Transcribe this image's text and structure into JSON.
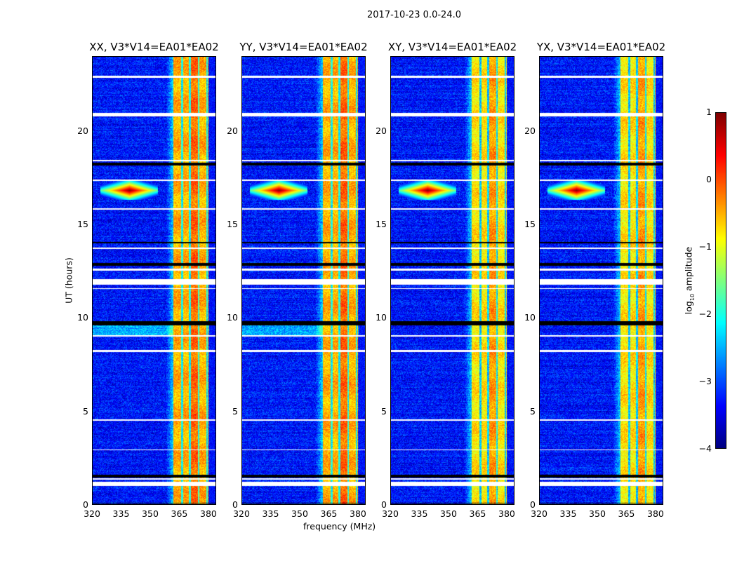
{
  "chart_data": {
    "type": "heatmap",
    "suptitle": "2017-10-23 0.0-24.0",
    "xlabel": "frequency (MHz)",
    "ylabel": "UT (hours)",
    "xlim": [
      320,
      384
    ],
    "ylim": [
      0,
      24
    ],
    "xticks": [
      "320",
      "335",
      "350",
      "365",
      "380"
    ],
    "xtick_values": [
      320,
      335,
      350,
      365,
      380
    ],
    "yticks": [
      "0",
      "5",
      "10",
      "15",
      "20"
    ],
    "ytick_values": [
      0,
      5,
      10,
      15,
      20
    ],
    "panels": [
      {
        "title": "XX, V3*V14=EA01*EA02"
      },
      {
        "title": "YY, V3*V14=EA01*EA02"
      },
      {
        "title": "XY, V3*V14=EA01*EA02"
      },
      {
        "title": "YX, V3*V14=EA01*EA02"
      }
    ],
    "colorbar": {
      "label": "log10 amplitude",
      "label_main": "log",
      "label_sub": "10",
      "label_rest": " amplitude",
      "range": [
        -4,
        1
      ],
      "ticks": [
        "1",
        "0",
        "−1",
        "−2",
        "−3",
        "−4"
      ],
      "tick_values": [
        1,
        0,
        -1,
        -2,
        -3,
        -4
      ],
      "colormap": "jet"
    },
    "background_level": -3.3,
    "bright_band_MHz": [
      362,
      380
    ],
    "bright_band_level": -0.5,
    "rfi_spike": {
      "freq_MHz": 339,
      "time_h": 16.85,
      "level": 1
    },
    "flagged_time_ranges_h": [
      [
        22.88,
        23.02
      ],
      [
        20.83,
        21.0
      ],
      [
        18.4,
        18.5
      ],
      [
        17.35,
        17.42
      ],
      [
        15.8,
        15.88
      ],
      [
        13.7,
        13.8
      ],
      [
        12.55,
        12.65
      ],
      [
        11.8,
        12.08
      ],
      [
        11.55,
        11.62
      ],
      [
        9.0,
        9.1
      ],
      [
        8.2,
        8.28
      ],
      [
        4.5,
        4.57
      ],
      [
        2.9,
        2.95
      ],
      [
        1.0,
        1.24
      ],
      [
        1.35,
        1.4
      ]
    ],
    "dark_time_ranges_h": [
      [
        18.2,
        18.32
      ],
      [
        14.0,
        14.1
      ],
      [
        12.8,
        12.95
      ],
      [
        9.6,
        9.85
      ],
      [
        1.45,
        1.6
      ],
      [
        0.05,
        0.1
      ]
    ]
  }
}
